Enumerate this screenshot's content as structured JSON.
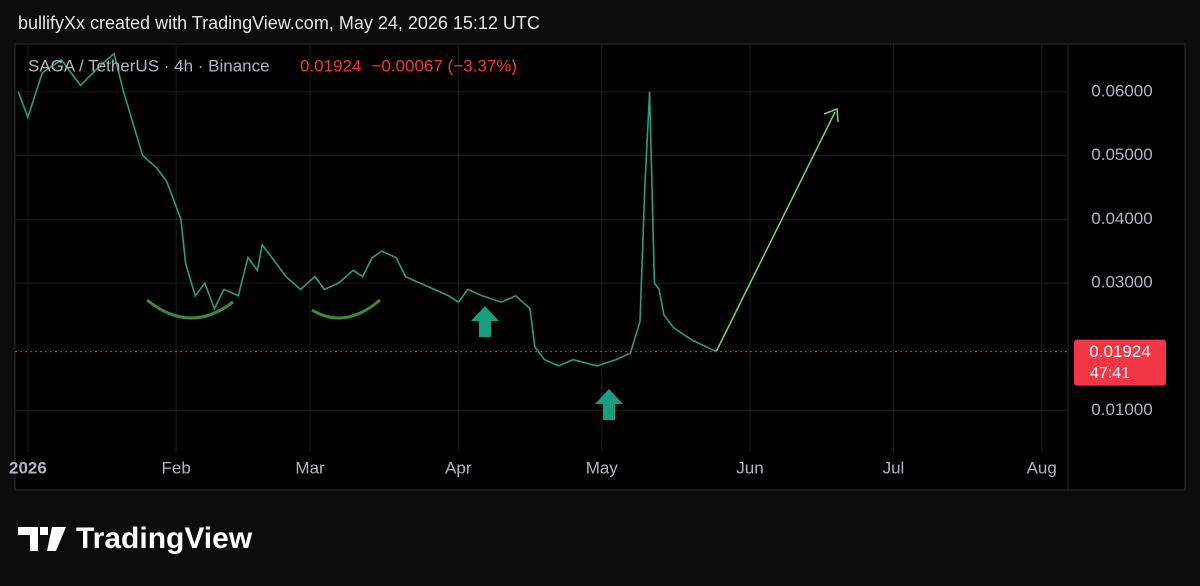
{
  "header": {
    "attribution": "bullifyXx created with TradingView.com, May 24, 2026 15:12 UTC"
  },
  "chart_data": {
    "type": "line",
    "title": "SAGA / TetherUS · 4h · Binance",
    "last_price": 0.01924,
    "change": "−0.00067 (−3.37%)",
    "countdown": "47:41",
    "color": "#2e9c7f",
    "last_price_color": "#f23645",
    "x": [
      -1,
      1,
      4,
      8,
      12,
      16,
      19,
      21,
      23,
      25,
      28,
      30,
      33,
      34,
      36,
      38,
      40,
      42,
      45,
      47,
      49,
      50,
      53,
      55,
      58,
      61,
      63,
      66,
      69,
      71,
      73,
      75,
      78,
      80,
      83,
      86,
      89,
      91,
      93,
      96,
      100,
      103,
      106,
      107,
      109,
      112,
      115,
      120,
      124,
      127,
      129,
      130,
      131,
      132,
      133,
      134,
      136,
      138,
      140,
      145
    ],
    "values": [
      0.06,
      0.056,
      0.063,
      0.065,
      0.061,
      0.064,
      0.066,
      0.06,
      0.055,
      0.05,
      0.048,
      0.046,
      0.04,
      0.033,
      0.028,
      0.03,
      0.026,
      0.029,
      0.028,
      0.034,
      0.032,
      0.036,
      0.033,
      0.031,
      0.029,
      0.031,
      0.029,
      0.03,
      0.032,
      0.031,
      0.034,
      0.035,
      0.034,
      0.031,
      0.03,
      0.029,
      0.028,
      0.027,
      0.029,
      0.028,
      0.027,
      0.028,
      0.026,
      0.02,
      0.018,
      0.017,
      0.018,
      0.017,
      0.018,
      0.019,
      0.024,
      0.045,
      0.06,
      0.03,
      0.029,
      0.025,
      0.023,
      0.022,
      0.021,
      0.01924
    ],
    "xlim": [
      -1.7,
      218.5
    ],
    "xticks": [
      {
        "value": 1,
        "label": "2026"
      },
      {
        "value": 32,
        "label": "Feb"
      },
      {
        "value": 60,
        "label": "Mar"
      },
      {
        "value": 91,
        "label": "Apr"
      },
      {
        "value": 121,
        "label": "May"
      },
      {
        "value": 152,
        "label": "Jun"
      },
      {
        "value": 182,
        "label": "Jul"
      },
      {
        "value": 213,
        "label": "Aug"
      }
    ],
    "ylim": [
      0.0035,
      0.0675
    ],
    "yticks": [
      {
        "value": 0.01,
        "label": "0.01000"
      },
      {
        "value": 0.03,
        "label": "0.03000"
      },
      {
        "value": 0.04,
        "label": "0.04000"
      },
      {
        "value": 0.05,
        "label": "0.05000"
      },
      {
        "value": 0.06,
        "label": "0.06000"
      }
    ],
    "grid": true
  },
  "footer": {
    "logo": "TradingView"
  }
}
